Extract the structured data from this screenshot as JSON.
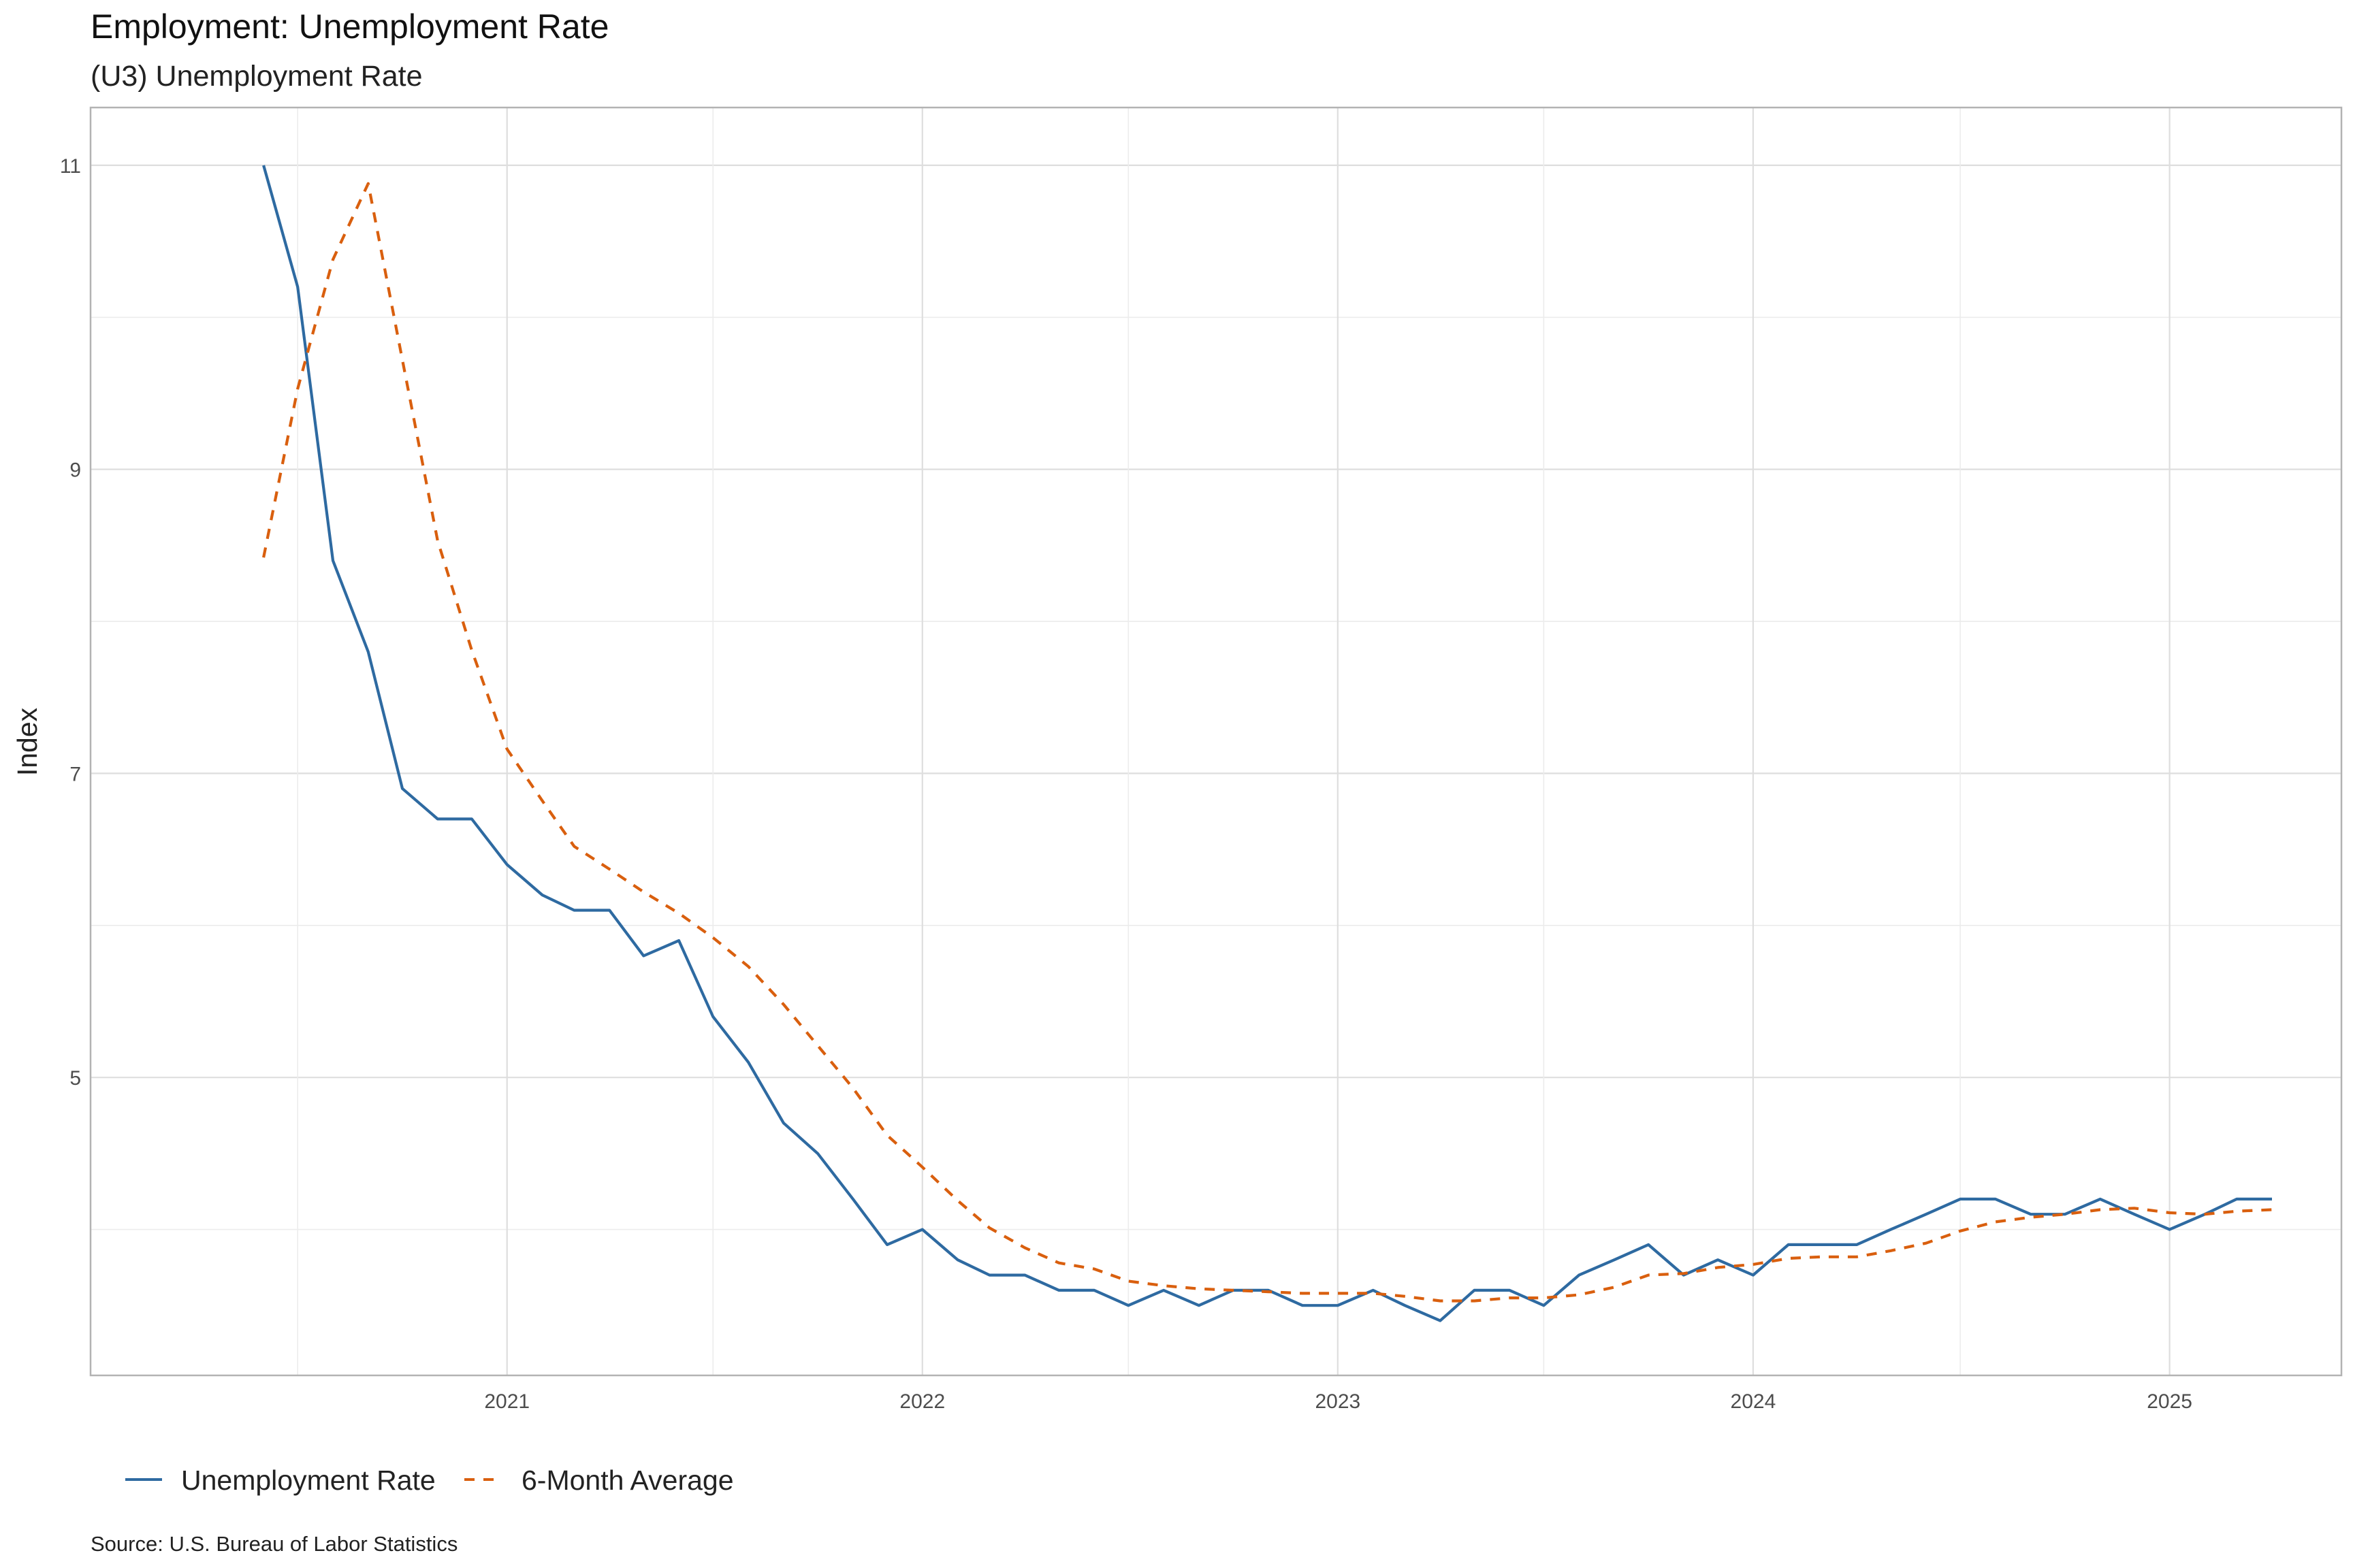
{
  "chart_data": {
    "type": "line",
    "title": "Employment: Unemployment Rate",
    "subtitle": "(U3) Unemployment Rate",
    "xlabel": "",
    "ylabel": "Index",
    "caption": "Source:  U.S. Bureau of Labor Statistics",
    "grid": true,
    "legend_position": "bottom-left",
    "xlim": [
      "2020-01-01",
      "2025-06-01"
    ],
    "ylim": [
      3.04,
      11.38
    ],
    "x_ticks": [
      {
        "date": "2021-01-01",
        "label": "2021"
      },
      {
        "date": "2022-01-01",
        "label": "2022"
      },
      {
        "date": "2023-01-01",
        "label": "2023"
      },
      {
        "date": "2024-01-01",
        "label": "2024"
      },
      {
        "date": "2025-01-01",
        "label": "2025"
      }
    ],
    "y_ticks": [
      {
        "value": 5,
        "label": "5"
      },
      {
        "value": 7,
        "label": "7"
      },
      {
        "value": 9,
        "label": "9"
      },
      {
        "value": 11,
        "label": "11"
      }
    ],
    "x": [
      "2020-06-01",
      "2020-07-01",
      "2020-08-01",
      "2020-09-01",
      "2020-10-01",
      "2020-11-01",
      "2020-12-01",
      "2021-01-01",
      "2021-02-01",
      "2021-03-01",
      "2021-04-01",
      "2021-05-01",
      "2021-06-01",
      "2021-07-01",
      "2021-08-01",
      "2021-09-01",
      "2021-10-01",
      "2021-11-01",
      "2021-12-01",
      "2022-01-01",
      "2022-02-01",
      "2022-03-01",
      "2022-04-01",
      "2022-05-01",
      "2022-06-01",
      "2022-07-01",
      "2022-08-01",
      "2022-09-01",
      "2022-10-01",
      "2022-11-01",
      "2022-12-01",
      "2023-01-01",
      "2023-02-01",
      "2023-03-01",
      "2023-04-01",
      "2023-05-01",
      "2023-06-01",
      "2023-07-01",
      "2023-08-01",
      "2023-09-01",
      "2023-10-01",
      "2023-11-01",
      "2023-12-01",
      "2024-01-01",
      "2024-02-01",
      "2024-03-01",
      "2024-04-01",
      "2024-05-01",
      "2024-06-01",
      "2024-07-01",
      "2024-08-01",
      "2024-09-01",
      "2024-10-01",
      "2024-11-01",
      "2024-12-01",
      "2025-01-01",
      "2025-02-01",
      "2025-03-01",
      "2025-04-01"
    ],
    "series": [
      {
        "name": "Unemployment Rate",
        "color": "#2e6aa1",
        "dash": "solid",
        "values": [
          11.0,
          10.2,
          8.4,
          7.8,
          6.9,
          6.7,
          6.7,
          6.4,
          6.2,
          6.1,
          6.1,
          5.8,
          5.9,
          5.4,
          5.1,
          4.7,
          4.5,
          4.2,
          3.9,
          4.0,
          3.8,
          3.7,
          3.7,
          3.6,
          3.6,
          3.5,
          3.6,
          3.5,
          3.6,
          3.6,
          3.5,
          3.5,
          3.6,
          3.5,
          3.4,
          3.6,
          3.6,
          3.5,
          3.7,
          3.8,
          3.9,
          3.7,
          3.8,
          3.7,
          3.9,
          3.9,
          3.9,
          4.0,
          4.1,
          4.2,
          4.2,
          4.1,
          4.1,
          4.2,
          4.1,
          4.0,
          4.1,
          4.2,
          4.2
        ]
      },
      {
        "name": "6-Month Average",
        "color": "#d95f0e",
        "dash": "dashed",
        "values": [
          8.42,
          9.53,
          10.38,
          10.88,
          9.72,
          8.53,
          7.81,
          7.16,
          6.82,
          6.52,
          6.37,
          6.22,
          6.08,
          5.92,
          5.73,
          5.48,
          5.21,
          4.93,
          4.62,
          4.41,
          4.19,
          4.01,
          3.88,
          3.78,
          3.74,
          3.66,
          3.63,
          3.61,
          3.6,
          3.59,
          3.58,
          3.58,
          3.58,
          3.56,
          3.53,
          3.53,
          3.55,
          3.55,
          3.57,
          3.62,
          3.7,
          3.71,
          3.75,
          3.77,
          3.81,
          3.82,
          3.82,
          3.86,
          3.91,
          3.99,
          4.05,
          4.08,
          4.1,
          4.13,
          4.14,
          4.11,
          4.1,
          4.12,
          4.13
        ]
      }
    ]
  }
}
